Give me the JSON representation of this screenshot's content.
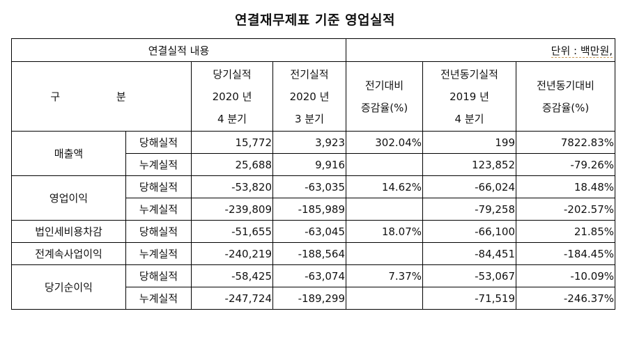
{
  "title": "연결재무제표 기준 영업실적",
  "header": {
    "content_label": "연결실적 내용",
    "unit_label": "단위 : 백만원,",
    "category_label": "구 분",
    "col_current": [
      "당기실적",
      "2020 년",
      "4 분기"
    ],
    "col_prev": [
      "전기실적",
      "2020 년",
      "3 분기"
    ],
    "col_qoq": [
      "전기대비",
      "증감율(%)"
    ],
    "col_yoy_period": [
      "전년동기실적",
      "2019 년",
      "4 분기"
    ],
    "col_yoy": [
      "전년동기대비",
      "증감율(%)"
    ]
  },
  "rows": [
    {
      "category": [
        "매출액"
      ],
      "lines": [
        {
          "type": "당해실적",
          "current": "15,772",
          "prev": "3,923",
          "qoq": "302.04%",
          "yoy_period": "199",
          "yoy": "7822.83%"
        },
        {
          "type": "누계실적",
          "current": "25,688",
          "prev": "9,916",
          "qoq": "",
          "yoy_period": "123,852",
          "yoy": "-79.26%"
        }
      ]
    },
    {
      "category": [
        "영업이익"
      ],
      "lines": [
        {
          "type": "당해실적",
          "current": "-53,820",
          "prev": "-63,035",
          "qoq": "14.62%",
          "yoy_period": "-66,024",
          "yoy": "18.48%"
        },
        {
          "type": "누계실적",
          "current": "-239,809",
          "prev": "-185,989",
          "qoq": "",
          "yoy_period": "-79,258",
          "yoy": "-202.57%"
        }
      ]
    },
    {
      "category": [
        "법인세비용차감",
        "전계속사업이익"
      ],
      "lines": [
        {
          "type": "당해실적",
          "current": "-51,655",
          "prev": "-63,045",
          "qoq": "18.07%",
          "yoy_period": "-66,100",
          "yoy": "21.85%"
        },
        {
          "type": "누계실적",
          "current": "-240,219",
          "prev": "-188,564",
          "qoq": "",
          "yoy_period": "-84,451",
          "yoy": "-184.45%"
        }
      ]
    },
    {
      "category": [
        "당기순이익"
      ],
      "lines": [
        {
          "type": "당해실적",
          "current": "-58,425",
          "prev": "-63,074",
          "qoq": "7.37%",
          "yoy_period": "-53,067",
          "yoy": "-10.09%"
        },
        {
          "type": "누계실적",
          "current": "-247,724",
          "prev": "-189,299",
          "qoq": "",
          "yoy_period": "-71,519",
          "yoy": "-246.37%"
        }
      ]
    }
  ]
}
